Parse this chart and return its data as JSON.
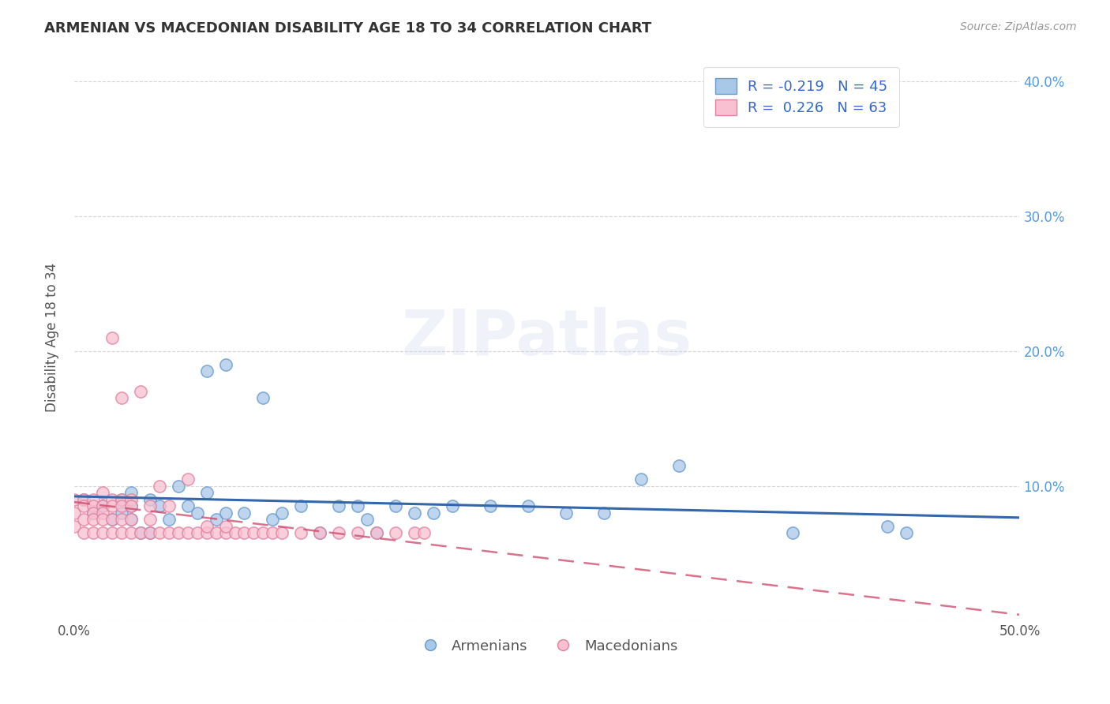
{
  "title": "ARMENIAN VS MACEDONIAN DISABILITY AGE 18 TO 34 CORRELATION CHART",
  "source": "Source: ZipAtlas.com",
  "ylabel": "Disability Age 18 to 34",
  "watermark": "ZIPatlas",
  "xlim": [
    0.0,
    0.5
  ],
  "ylim": [
    0.0,
    0.42
  ],
  "x_ticks": [
    0.0,
    0.1,
    0.2,
    0.3,
    0.4,
    0.5
  ],
  "x_tick_labels": [
    "0.0%",
    "",
    "",
    "",
    "",
    "50.0%"
  ],
  "y_ticks": [
    0.0,
    0.1,
    0.2,
    0.3,
    0.4
  ],
  "y_tick_labels_right": [
    "",
    "10.0%",
    "20.0%",
    "30.0%",
    "40.0%"
  ],
  "armenian_color": "#a8c8e8",
  "armenian_edge": "#6699cc",
  "macedonian_color": "#f8c0d0",
  "macedonian_edge": "#e080a0",
  "trendline_armenian_color": "#3366aa",
  "trendline_macedonian_color": "#cc4466",
  "R_armenian": -0.219,
  "N_armenian": 45,
  "R_macedonian": 0.226,
  "N_macedonian": 63,
  "armenians_x": [
    0.005,
    0.01,
    0.015,
    0.02,
    0.025,
    0.025,
    0.03,
    0.03,
    0.03,
    0.035,
    0.04,
    0.04,
    0.045,
    0.05,
    0.055,
    0.06,
    0.065,
    0.07,
    0.07,
    0.075,
    0.08,
    0.08,
    0.09,
    0.1,
    0.105,
    0.11,
    0.12,
    0.13,
    0.14,
    0.15,
    0.155,
    0.16,
    0.17,
    0.18,
    0.19,
    0.2,
    0.22,
    0.24,
    0.26,
    0.28,
    0.3,
    0.32,
    0.38,
    0.43,
    0.44
  ],
  "armenians_y": [
    0.09,
    0.08,
    0.085,
    0.075,
    0.09,
    0.08,
    0.095,
    0.085,
    0.075,
    0.065,
    0.09,
    0.065,
    0.085,
    0.075,
    0.1,
    0.085,
    0.08,
    0.185,
    0.095,
    0.075,
    0.19,
    0.08,
    0.08,
    0.165,
    0.075,
    0.08,
    0.085,
    0.065,
    0.085,
    0.085,
    0.075,
    0.065,
    0.085,
    0.08,
    0.08,
    0.085,
    0.085,
    0.085,
    0.08,
    0.08,
    0.105,
    0.115,
    0.065,
    0.07,
    0.065
  ],
  "macedonians_x": [
    0.0,
    0.0,
    0.0,
    0.005,
    0.005,
    0.005,
    0.005,
    0.01,
    0.01,
    0.01,
    0.01,
    0.01,
    0.015,
    0.015,
    0.015,
    0.015,
    0.015,
    0.02,
    0.02,
    0.02,
    0.02,
    0.02,
    0.025,
    0.025,
    0.025,
    0.025,
    0.025,
    0.03,
    0.03,
    0.03,
    0.03,
    0.035,
    0.035,
    0.04,
    0.04,
    0.04,
    0.045,
    0.045,
    0.05,
    0.05,
    0.055,
    0.06,
    0.06,
    0.065,
    0.07,
    0.07,
    0.075,
    0.08,
    0.08,
    0.085,
    0.09,
    0.095,
    0.1,
    0.105,
    0.11,
    0.12,
    0.13,
    0.14,
    0.15,
    0.16,
    0.17,
    0.18,
    0.185
  ],
  "macedonians_y": [
    0.09,
    0.08,
    0.07,
    0.09,
    0.085,
    0.075,
    0.065,
    0.09,
    0.085,
    0.08,
    0.075,
    0.065,
    0.095,
    0.085,
    0.08,
    0.075,
    0.065,
    0.21,
    0.09,
    0.085,
    0.075,
    0.065,
    0.165,
    0.09,
    0.085,
    0.075,
    0.065,
    0.09,
    0.085,
    0.075,
    0.065,
    0.17,
    0.065,
    0.085,
    0.075,
    0.065,
    0.1,
    0.065,
    0.085,
    0.065,
    0.065,
    0.105,
    0.065,
    0.065,
    0.065,
    0.07,
    0.065,
    0.065,
    0.07,
    0.065,
    0.065,
    0.065,
    0.065,
    0.065,
    0.065,
    0.065,
    0.065,
    0.065,
    0.065,
    0.065,
    0.065,
    0.065,
    0.065
  ],
  "background_color": "#ffffff",
  "grid_color": "#cccccc",
  "legend_label_color": "#3366cc",
  "right_axis_label_color": "#5599dd"
}
